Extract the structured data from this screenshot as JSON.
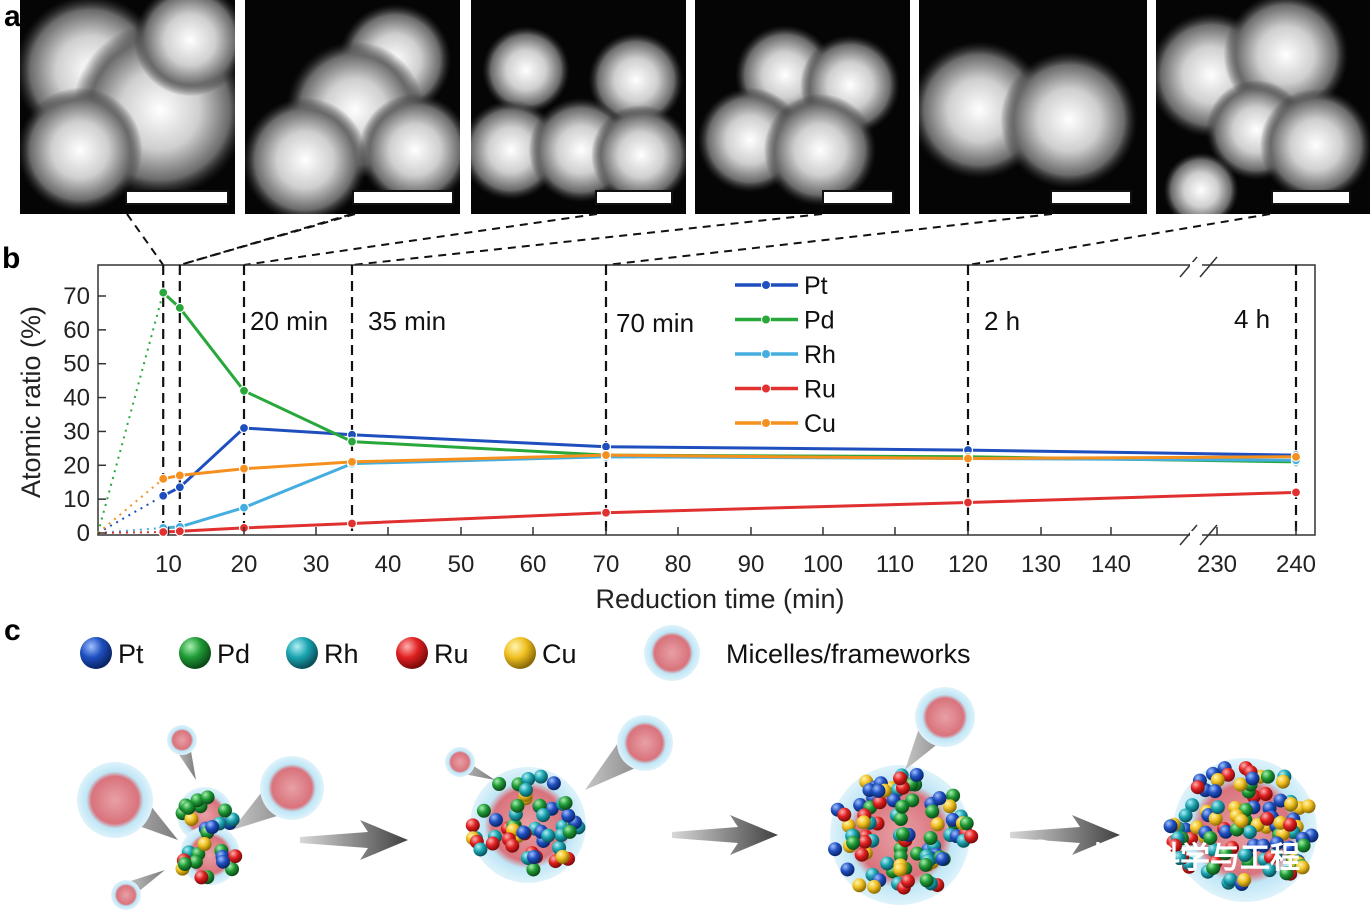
{
  "panels": {
    "a": "a",
    "b": "b",
    "c": "c"
  },
  "colors": {
    "Pt": "#1f4fbf",
    "Pd": "#28a83a",
    "Rh": "#44aee0",
    "Ru": "#e03030",
    "Cu": "#f5901e"
  },
  "chart_data": {
    "type": "line",
    "xlabel": "Reduction time (min)",
    "ylabel": "Atomic ratio (%)",
    "ylim": [
      0,
      75
    ],
    "yticks": [
      0,
      10,
      20,
      30,
      40,
      50,
      60,
      70
    ],
    "xticks": [
      10,
      20,
      30,
      40,
      50,
      60,
      70,
      80,
      90,
      100,
      110,
      120,
      130,
      140,
      230,
      240
    ],
    "axis_break": [
      140,
      230
    ],
    "legend_position": "top-center",
    "time_markers": [
      {
        "x": 9.3,
        "label": ""
      },
      {
        "x": 11.5,
        "label": ""
      },
      {
        "x": 20,
        "label": "20 min"
      },
      {
        "x": 35,
        "label": "35 min"
      },
      {
        "x": 70,
        "label": "70 min"
      },
      {
        "x": 120,
        "label": "2 h"
      },
      {
        "x": 240,
        "label": "4 h"
      }
    ],
    "x": [
      9.3,
      11.5,
      20,
      35,
      70,
      120,
      240
    ],
    "series": [
      {
        "name": "Pt",
        "values": [
          11,
          13.5,
          31,
          29,
          25.5,
          24.5,
          23
        ]
      },
      {
        "name": "Pd",
        "values": [
          71,
          66.5,
          42,
          27,
          23,
          22.5,
          21
        ]
      },
      {
        "name": "Rh",
        "values": [
          1.5,
          1.8,
          7.5,
          20.5,
          22.5,
          22,
          21.5
        ]
      },
      {
        "name": "Ru",
        "values": [
          0.3,
          0.5,
          1.5,
          2.8,
          6,
          9,
          12
        ]
      },
      {
        "name": "Cu",
        "values": [
          16,
          17,
          19,
          21,
          23,
          22,
          22.5
        ]
      }
    ]
  },
  "scheme_legend": [
    {
      "label": "Pt",
      "color": "#1f4fbf"
    },
    {
      "label": "Pd",
      "color": "#28a83a"
    },
    {
      "label": "Rh",
      "color": "#1aa3b0"
    },
    {
      "label": "Ru",
      "color": "#e02020"
    },
    {
      "label": "Cu",
      "color": "#f0c020"
    },
    {
      "label": "Micelles/frameworks",
      "color": "#e07a80"
    }
  ],
  "watermark": "材料科学与工程"
}
